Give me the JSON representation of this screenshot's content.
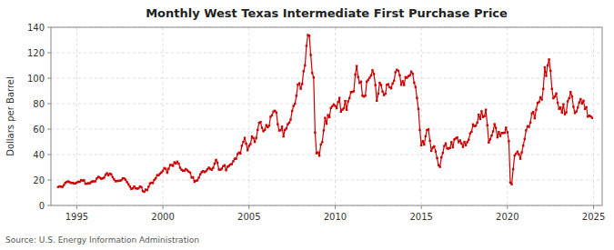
{
  "chart_data": {
    "type": "line",
    "title": "Monthly West Texas Intermediate First Purchase Price",
    "y_label": "Dollars per Barrel",
    "annotations": [
      "Source: U.S. Energy Information Administration"
    ],
    "color": "#cc0000",
    "marker": "square",
    "grid": true,
    "xlim": [
      1993.5,
      2025.5
    ],
    "xticks": [
      1995,
      2000,
      2005,
      2010,
      2015,
      2020,
      2025
    ],
    "ylim": [
      0,
      140
    ],
    "yticks": [
      0,
      20,
      40,
      60,
      80,
      100,
      120,
      140
    ],
    "x": [
      1993.917,
      1994.0,
      1994.083,
      1994.167,
      1994.25,
      1994.333,
      1994.417,
      1994.5,
      1994.583,
      1994.667,
      1994.75,
      1994.833,
      1994.917,
      1995.0,
      1995.083,
      1995.167,
      1995.25,
      1995.333,
      1995.417,
      1995.5,
      1995.583,
      1995.667,
      1995.75,
      1995.833,
      1995.917,
      1996.0,
      1996.083,
      1996.167,
      1996.25,
      1996.333,
      1996.417,
      1996.5,
      1996.583,
      1996.667,
      1996.75,
      1996.833,
      1996.917,
      1997.0,
      1997.083,
      1997.167,
      1997.25,
      1997.333,
      1997.417,
      1997.5,
      1997.583,
      1997.667,
      1997.75,
      1997.833,
      1997.917,
      1998.0,
      1998.083,
      1998.167,
      1998.25,
      1998.333,
      1998.417,
      1998.5,
      1998.583,
      1998.667,
      1998.75,
      1998.833,
      1998.917,
      1999.0,
      1999.083,
      1999.167,
      1999.25,
      1999.333,
      1999.417,
      1999.5,
      1999.583,
      1999.667,
      1999.75,
      1999.833,
      1999.917,
      2000.0,
      2000.083,
      2000.167,
      2000.25,
      2000.333,
      2000.417,
      2000.5,
      2000.583,
      2000.667,
      2000.75,
      2000.833,
      2000.917,
      2001.0,
      2001.083,
      2001.167,
      2001.25,
      2001.333,
      2001.417,
      2001.5,
      2001.583,
      2001.667,
      2001.75,
      2001.833,
      2001.917,
      2002.0,
      2002.083,
      2002.167,
      2002.25,
      2002.333,
      2002.417,
      2002.5,
      2002.583,
      2002.667,
      2002.75,
      2002.833,
      2002.917,
      2003.0,
      2003.083,
      2003.167,
      2003.25,
      2003.333,
      2003.417,
      2003.5,
      2003.583,
      2003.667,
      2003.75,
      2003.833,
      2003.917,
      2004.0,
      2004.083,
      2004.167,
      2004.25,
      2004.333,
      2004.417,
      2004.5,
      2004.583,
      2004.667,
      2004.75,
      2004.833,
      2004.917,
      2005.0,
      2005.083,
      2005.167,
      2005.25,
      2005.333,
      2005.417,
      2005.5,
      2005.583,
      2005.667,
      2005.75,
      2005.833,
      2005.917,
      2006.0,
      2006.083,
      2006.167,
      2006.25,
      2006.333,
      2006.417,
      2006.5,
      2006.583,
      2006.667,
      2006.75,
      2006.833,
      2006.917,
      2007.0,
      2007.083,
      2007.167,
      2007.25,
      2007.333,
      2007.417,
      2007.5,
      2007.583,
      2007.667,
      2007.75,
      2007.833,
      2007.917,
      2008.0,
      2008.083,
      2008.167,
      2008.25,
      2008.333,
      2008.417,
      2008.5,
      2008.583,
      2008.667,
      2008.75,
      2008.833,
      2008.917,
      2009.0,
      2009.083,
      2009.167,
      2009.25,
      2009.333,
      2009.417,
      2009.5,
      2009.583,
      2009.667,
      2009.75,
      2009.833,
      2009.917,
      2010.0,
      2010.083,
      2010.167,
      2010.25,
      2010.333,
      2010.417,
      2010.5,
      2010.583,
      2010.667,
      2010.75,
      2010.833,
      2010.917,
      2011.0,
      2011.083,
      2011.167,
      2011.25,
      2011.333,
      2011.417,
      2011.5,
      2011.583,
      2011.667,
      2011.75,
      2011.833,
      2011.917,
      2012.0,
      2012.083,
      2012.167,
      2012.25,
      2012.333,
      2012.417,
      2012.5,
      2012.583,
      2012.667,
      2012.75,
      2012.833,
      2012.917,
      2013.0,
      2013.083,
      2013.167,
      2013.25,
      2013.333,
      2013.417,
      2013.5,
      2013.583,
      2013.667,
      2013.75,
      2013.833,
      2013.917,
      2014.0,
      2014.083,
      2014.167,
      2014.25,
      2014.333,
      2014.417,
      2014.5,
      2014.583,
      2014.667,
      2014.75,
      2014.833,
      2014.917,
      2015.0,
      2015.083,
      2015.167,
      2015.25,
      2015.333,
      2015.417,
      2015.5,
      2015.583,
      2015.667,
      2015.75,
      2015.833,
      2015.917,
      2016.0,
      2016.083,
      2016.167,
      2016.25,
      2016.333,
      2016.417,
      2016.5,
      2016.583,
      2016.667,
      2016.75,
      2016.833,
      2016.917,
      2017.0,
      2017.083,
      2017.167,
      2017.25,
      2017.333,
      2017.417,
      2017.5,
      2017.583,
      2017.667,
      2017.75,
      2017.833,
      2017.917,
      2018.0,
      2018.083,
      2018.167,
      2018.25,
      2018.333,
      2018.417,
      2018.5,
      2018.583,
      2018.667,
      2018.75,
      2018.833,
      2018.917,
      2019.0,
      2019.083,
      2019.167,
      2019.25,
      2019.333,
      2019.417,
      2019.5,
      2019.583,
      2019.667,
      2019.75,
      2019.833,
      2019.917,
      2020.0,
      2020.083,
      2020.167,
      2020.25,
      2020.333,
      2020.417,
      2020.5,
      2020.583,
      2020.667,
      2020.75,
      2020.833,
      2020.917,
      2021.0,
      2021.083,
      2021.167,
      2021.25,
      2021.333,
      2021.417,
      2021.5,
      2021.583,
      2021.667,
      2021.75,
      2021.833,
      2021.917,
      2022.0,
      2022.083,
      2022.167,
      2022.25,
      2022.333,
      2022.417,
      2022.5,
      2022.583,
      2022.667,
      2022.75,
      2022.833,
      2022.917,
      2023.0,
      2023.083,
      2023.167,
      2023.25,
      2023.333,
      2023.417,
      2023.5,
      2023.583,
      2023.667,
      2023.75,
      2023.833,
      2023.917,
      2024.0,
      2024.083,
      2024.167,
      2024.25,
      2024.333,
      2024.417,
      2024.5,
      2024.583,
      2024.667,
      2024.75,
      2024.833,
      2024.917
    ],
    "values": [
      14.5,
      15.0,
      14.8,
      14.6,
      16.0,
      17.8,
      18.5,
      18.9,
      18.3,
      17.7,
      17.8,
      17.4,
      17.3,
      17.9,
      18.6,
      18.5,
      19.9,
      19.5,
      19.8,
      17.1,
      17.1,
      17.5,
      17.4,
      18.3,
      19.0,
      18.9,
      19.0,
      21.3,
      22.5,
      21.9,
      21.0,
      21.3,
      21.8,
      24.0,
      25.3,
      23.7,
      25.0,
      24.5,
      22.2,
      20.5,
      19.0,
      19.2,
      19.3,
      19.4,
      19.8,
      21.3,
      21.3,
      20.2,
      18.3,
      16.7,
      14.8,
      13.0,
      13.4,
      14.9,
      13.5,
      13.2,
      13.4,
      14.9,
      14.4,
      11.3,
      10.7,
      12.5,
      12.0,
      14.7,
      17.3,
      17.9,
      17.6,
      20.1,
      21.3,
      23.8,
      23.7,
      25.0,
      26.0,
      27.2,
      29.4,
      28.8,
      25.7,
      28.8,
      31.8,
      31.8,
      31.1,
      33.9,
      33.0,
      34.4,
      32.9,
      29.6,
      28.0,
      27.2,
      27.4,
      28.6,
      27.6,
      26.5,
      25.8,
      21.9,
      22.2,
      18.6,
      19.4,
      19.7,
      21.8,
      24.4,
      26.2,
      27.0,
      26.2,
      26.9,
      28.4,
      29.7,
      28.8,
      28.0,
      29.5,
      32.9,
      35.8,
      33.6,
      28.2,
      28.0,
      28.9,
      30.8,
      31.6,
      27.6,
      30.3,
      31.1,
      32.2,
      32.5,
      34.7,
      36.7,
      36.7,
      40.3,
      41.5,
      40.8,
      46.9,
      49.9,
      53.1,
      48.5,
      43.4,
      46.8,
      48.2,
      54.2,
      53.0,
      49.9,
      53.0,
      59.4,
      64.9,
      65.6,
      61.0,
      58.3,
      59.4,
      63.1,
      61.5,
      62.7,
      69.7,
      70.9,
      73.8,
      74.4,
      73.1,
      63.8,
      58.9,
      59.1,
      61.9,
      54.2,
      59.3,
      60.5,
      63.8,
      65.0,
      67.5,
      74.2,
      78.2,
      79.9,
      86.2,
      94.9,
      96.0,
      91.7,
      95.4,
      105.5,
      110.0,
      125.4,
      133.9,
      133.4,
      118.2,
      104.1,
      100.6,
      57.3,
      41.0,
      41.7,
      39.1,
      47.9,
      49.8,
      59.0,
      68.8,
      64.2,
      71.0,
      69.4,
      76.6,
      77.9,
      79.4,
      78.3,
      76.4,
      81.2,
      84.5,
      73.7,
      75.3,
      76.3,
      82.0,
      75.2,
      81.8,
      84.3,
      89.1,
      89.2,
      89.8,
      102.9,
      109.5,
      100.9,
      96.3,
      97.3,
      86.3,
      85.5,
      86.3,
      97.2,
      98.6,
      100.3,
      102.2,
      106.2,
      103.3,
      94.6,
      82.3,
      87.9,
      96.4,
      94.6,
      89.5,
      86.7,
      87.8,
      94.8,
      95.3,
      92.9,
      92.0,
      95.8,
      98.0,
      104.7,
      106.6,
      105.8,
      102.3,
      94.8,
      97.6,
      94.6,
      100.8,
      100.3,
      101.6,
      102.2,
      105.2,
      103.6,
      96.5,
      93.0,
      84.4,
      75.8,
      59.3,
      47.2,
      50.6,
      47.8,
      54.4,
      59.3,
      59.8,
      50.9,
      42.9,
      45.5,
      46.5,
      42.4,
      37.2,
      31.7,
      30.3,
      37.8,
      41.3,
      46.7,
      48.8,
      44.7,
      44.7,
      45.2,
      49.8,
      45.7,
      51.9,
      52.6,
      53.5,
      49.7,
      51.1,
      48.7,
      46.0,
      49.9,
      47.3,
      49.8,
      51.6,
      56.6,
      57.9,
      63.7,
      62.2,
      62.7,
      65.1,
      71.3,
      67.9,
      74.0,
      69.5,
      70.2,
      75.2,
      63.0,
      49.5,
      52.0,
      54.9,
      58.2,
      63.9,
      60.9,
      53.5,
      57.7,
      54.6,
      56.9,
      57.0,
      57.1,
      61.1,
      57.5,
      50.5,
      17.9,
      16.7,
      28.5,
      39.3,
      40.7,
      42.3,
      40.2,
      36.7,
      41.7,
      47.0,
      52.2,
      59.0,
      62.3,
      61.7,
      65.2,
      72.4,
      73.5,
      68.5,
      75.2,
      80.5,
      81.2,
      85.0,
      83.2,
      91.6,
      108.5,
      101.8,
      110.0,
      114.7,
      105.8,
      91.6,
      84.2,
      85.6,
      88.0,
      80.6,
      75.9,
      77.0,
      73.0,
      79.5,
      71.7,
      73.2,
      81.8,
      84.2,
      89.1,
      85.6,
      77.5,
      72.6,
      73.8,
      76.9,
      81.0,
      83.6,
      80.0,
      82.3,
      75.9,
      77.2,
      69.8,
      70.5,
      70.0,
      68.8
    ]
  }
}
